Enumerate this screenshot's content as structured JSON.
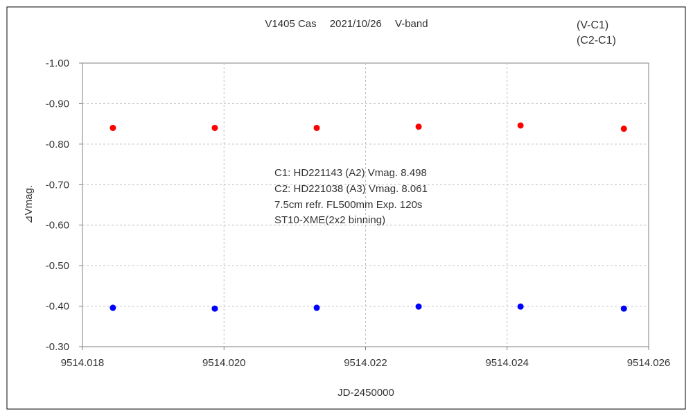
{
  "chart_data": {
    "type": "scatter",
    "title": "V1405 Cas　 2021/10/26　 V-band",
    "xlabel": "JD-2450000",
    "ylabel": "⊿Vmag.",
    "xlim": [
      9514.018,
      9514.026
    ],
    "ylim": [
      -1.0,
      -0.3
    ],
    "y_inverted": true,
    "grid": true,
    "legend_placement": "top-right",
    "x_ticks": [
      "9514.018",
      "9514.020",
      "9514.022",
      "9514.024",
      "9514.026"
    ],
    "y_ticks": [
      "-1.00",
      "-0.90",
      "-0.80",
      "-0.70",
      "-0.60",
      "-0.50",
      "-0.40",
      "-0.30"
    ],
    "annotation_lines": [
      "C1: HD221143 (A2) Vmag. 8.498",
      "C2: HD221038 (A3) Vmag. 8.061",
      "7.5cm refr. FL500mm Exp. 120s",
      "ST10-XME(2x2 binning)"
    ],
    "series": [
      {
        "name": "(V-C1)",
        "color": "#ff0000",
        "x": [
          9514.01843,
          9514.01987,
          9514.02131,
          9514.02275,
          9514.02419,
          9514.02565
        ],
        "y": [
          -0.84,
          -0.84,
          -0.84,
          -0.843,
          -0.846,
          -0.838
        ]
      },
      {
        "name": "(C2-C1)",
        "color": "#0000ff",
        "x": [
          9514.01843,
          9514.01987,
          9514.02131,
          9514.02275,
          9514.02419,
          9514.02565
        ],
        "y": [
          -0.396,
          -0.394,
          -0.396,
          -0.399,
          -0.399,
          -0.394
        ]
      }
    ]
  }
}
